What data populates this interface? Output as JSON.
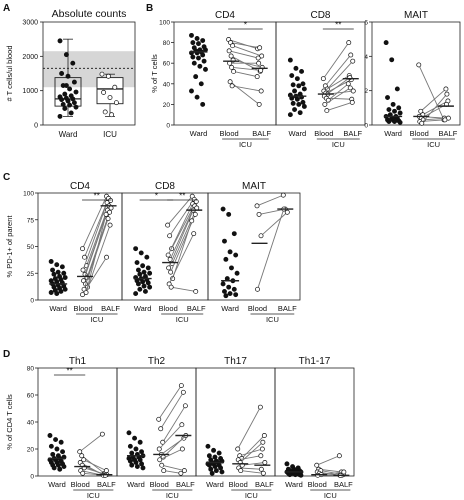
{
  "panel_letters": [
    "A",
    "B",
    "C",
    "D"
  ],
  "chart_data": [
    {
      "panel": "A",
      "type": "box-scatter",
      "title": "Absolute counts",
      "ylabel": "# T cells/ul blood",
      "ylim": [
        0,
        3000
      ],
      "yticks": [
        0,
        1000,
        2000,
        3000
      ],
      "reference_band": [
        1100,
        2150
      ],
      "reference_line": 1650,
      "categories": [
        "Ward",
        "ICU"
      ],
      "groups": [
        {
          "name": "Ward",
          "fill": "#555555",
          "box": {
            "min": 250,
            "q1": 550,
            "median": 760,
            "q3": 1380,
            "max": 2500
          },
          "values": [
            2450,
            2050,
            1800,
            1500,
            1420,
            1250,
            1150,
            1050,
            960,
            900,
            850,
            820,
            780,
            760,
            740,
            700,
            650,
            600,
            580,
            520,
            480,
            350,
            250,
            1150
          ]
        },
        {
          "name": "ICU",
          "fill": "#ffffff",
          "box": {
            "min": 250,
            "q1": 620,
            "median": 1050,
            "q3": 1380,
            "max": 1480
          },
          "values": [
            1480,
            1420,
            1100,
            950,
            800,
            650,
            380,
            300
          ]
        }
      ]
    },
    {
      "panel": "B",
      "type": "paired-dot",
      "ylabel": "% of T cells",
      "group_label": "ICU",
      "x_labels": [
        "Ward",
        "Blood",
        "BALF"
      ],
      "subpanels": [
        {
          "title": "CD4",
          "ylim": [
            0,
            100
          ],
          "yticks": [
            0,
            20,
            40,
            60,
            80,
            100
          ],
          "ward": [
            87,
            84,
            82,
            80,
            79,
            76,
            75,
            73,
            73,
            72,
            71,
            70,
            70,
            68,
            66,
            65,
            62,
            60,
            57,
            54,
            47,
            40,
            33,
            27,
            20
          ],
          "ward_median": 71,
          "pairs": [
            [
              83,
              74
            ],
            [
              80,
              75
            ],
            [
              77,
              67
            ],
            [
              72,
              65
            ],
            [
              67,
              52
            ],
            [
              63,
              56
            ],
            [
              60,
              60
            ],
            [
              56,
              53
            ],
            [
              52,
              47
            ],
            [
              42,
              20
            ],
            [
              38,
              33
            ]
          ],
          "blood_median": 62,
          "balf_median": 55,
          "sig": [
            {
              "from": "Blood",
              "to": "BALF",
              "label": "*"
            }
          ]
        },
        {
          "title": "CD8",
          "ylim": [
            0,
            100
          ],
          "yticks": [
            0,
            20,
            40,
            60,
            80,
            100
          ],
          "ward": [
            63,
            55,
            52,
            48,
            45,
            40,
            39,
            38,
            35,
            33,
            30,
            29,
            28,
            27,
            26,
            25,
            22,
            21,
            20,
            18,
            15,
            12,
            10
          ],
          "ward_median": 28,
          "pairs": [
            [
              45,
              80
            ],
            [
              38,
              68
            ],
            [
              35,
              62
            ],
            [
              33,
              48
            ],
            [
              31,
              44
            ],
            [
              30,
              33
            ],
            [
              28,
              46
            ],
            [
              26,
              25
            ],
            [
              24,
              40
            ],
            [
              20,
              36
            ],
            [
              14,
              22
            ]
          ],
          "blood_median": 30,
          "balf_median": 45,
          "sig": [
            {
              "from": "Blood",
              "to": "BALF",
              "label": "**"
            }
          ]
        },
        {
          "title": "MAIT",
          "ylim": [
            0,
            6
          ],
          "yticks": [
            0,
            2,
            4,
            6
          ],
          "ward": [
            4.8,
            3.8,
            2.1,
            1.6,
            1.2,
            1.0,
            0.9,
            0.8,
            0.7,
            0.6,
            0.5,
            0.5,
            0.4,
            0.4,
            0.3,
            0.3,
            0.25,
            0.2,
            0.2,
            0.15
          ],
          "ward_median": 0.5,
          "pairs": [
            [
              3.5,
              0.3
            ],
            [
              0.8,
              2.1
            ],
            [
              0.6,
              1.4
            ],
            [
              0.5,
              0.4
            ],
            [
              0.4,
              1.2
            ],
            [
              0.3,
              0.4
            ],
            [
              0.2,
              0.3
            ],
            [
              0.1,
              1.8
            ]
          ],
          "blood_median": 0.5,
          "balf_median": 1.1,
          "sig": []
        }
      ]
    },
    {
      "panel": "C",
      "type": "paired-dot",
      "ylabel": "% PD-1+ of parent",
      "group_label": "ICU",
      "x_labels": [
        "Ward",
        "Blood",
        "BALF"
      ],
      "subpanels": [
        {
          "title": "CD4",
          "ylim": [
            0,
            100
          ],
          "yticks": [
            0,
            25,
            50,
            75,
            100
          ],
          "ward": [
            36,
            33,
            31,
            28,
            26,
            25,
            24,
            22,
            21,
            20,
            19,
            18,
            17,
            16,
            15,
            14,
            13,
            12,
            11,
            10,
            9,
            8,
            7,
            6
          ],
          "ward_median": 15,
          "pairs": [
            [
              48,
              97
            ],
            [
              40,
              95
            ],
            [
              32,
              93
            ],
            [
              28,
              91
            ],
            [
              24,
              88
            ],
            [
              21,
              86
            ],
            [
              18,
              84
            ],
            [
              15,
              82
            ],
            [
              12,
              80
            ],
            [
              10,
              76
            ],
            [
              7,
              70
            ],
            [
              5,
              40
            ]
          ],
          "blood_median": 22,
          "balf_median": 88,
          "sig": [
            {
              "from": "Blood",
              "to": "BALF",
              "label": "**"
            }
          ]
        },
        {
          "title": "CD8",
          "ylim": [
            0,
            100
          ],
          "yticks": [
            0,
            25,
            50,
            75,
            100
          ],
          "ward": [
            48,
            44,
            40,
            35,
            32,
            30,
            28,
            26,
            25,
            24,
            22,
            21,
            20,
            19,
            18,
            17,
            16,
            15,
            13,
            12,
            10,
            8,
            6
          ],
          "ward_median": 20,
          "pairs": [
            [
              70,
              97
            ],
            [
              60,
              94
            ],
            [
              48,
              92
            ],
            [
              42,
              90
            ],
            [
              38,
              88
            ],
            [
              34,
              86
            ],
            [
              30,
              84
            ],
            [
              26,
              80
            ],
            [
              20,
              74
            ],
            [
              15,
              62
            ],
            [
              12,
              8
            ]
          ],
          "blood_median": 35,
          "balf_median": 84,
          "sig": [
            {
              "from": "Ward",
              "to": "Blood",
              "label": "*"
            },
            {
              "from": "Blood",
              "to": "BALF",
              "label": "**"
            }
          ]
        },
        {
          "title": "MAIT",
          "ylim": [
            0,
            100
          ],
          "yticks": [
            0,
            25,
            50,
            75,
            100
          ],
          "ward": [
            85,
            80,
            62,
            55,
            45,
            42,
            38,
            30,
            25,
            20,
            18,
            15,
            12,
            10,
            8,
            6,
            5,
            4
          ],
          "ward_median": 18,
          "pairs": [
            [
              88,
              98
            ],
            [
              80,
              85
            ],
            [
              60,
              82
            ],
            [
              10,
              85
            ]
          ],
          "blood_median": 53,
          "balf_median": 85,
          "sig": []
        }
      ]
    },
    {
      "panel": "D",
      "type": "paired-dot",
      "ylabel": "% of CD4 T cells",
      "group_label": "ICU",
      "x_labels": [
        "Ward",
        "Blood",
        "BALF"
      ],
      "subpanels": [
        {
          "title": "Th1",
          "ylim": [
            0,
            80
          ],
          "yticks": [
            0,
            20,
            40,
            60,
            80
          ],
          "ward": [
            30,
            27,
            25,
            22,
            20,
            18,
            16,
            15,
            14,
            13,
            13,
            12,
            12,
            11,
            10,
            10,
            9,
            8,
            8,
            7,
            6,
            5
          ],
          "ward_median": 13,
          "pairs": [
            [
              18,
              31
            ],
            [
              15,
              2
            ],
            [
              12,
              4
            ],
            [
              10,
              1
            ],
            [
              8,
              0.5
            ],
            [
              6,
              1
            ],
            [
              4,
              0.5
            ],
            [
              2,
              0.5
            ]
          ],
          "blood_median": 7,
          "balf_median": 1,
          "sig": [
            {
              "from": "Ward",
              "to": "Blood",
              "label": "**"
            }
          ]
        },
        {
          "title": "Th2",
          "ylim": [
            0,
            80
          ],
          "yticks": [
            0,
            20,
            40,
            60,
            80
          ],
          "ward": [
            32,
            28,
            25,
            22,
            20,
            18,
            17,
            16,
            15,
            14,
            14,
            13,
            12,
            12,
            11,
            10,
            9,
            8,
            7,
            6
          ],
          "ward_median": 15,
          "pairs": [
            [
              42,
              67
            ],
            [
              35,
              62
            ],
            [
              25,
              52
            ],
            [
              20,
              38
            ],
            [
              16,
              28
            ],
            [
              14,
              30
            ],
            [
              12,
              20
            ],
            [
              8,
              4
            ],
            [
              4,
              2
            ]
          ],
          "blood_median": 16,
          "balf_median": 30,
          "sig": []
        },
        {
          "title": "Th17",
          "ylim": [
            0,
            80
          ],
          "yticks": [
            0,
            20,
            40,
            60,
            80
          ],
          "ward": [
            22,
            19,
            17,
            15,
            14,
            13,
            12,
            11,
            11,
            10,
            10,
            9,
            9,
            8,
            8,
            7,
            6,
            5,
            4,
            3,
            2
          ],
          "ward_median": 10,
          "pairs": [
            [
              20,
              51
            ],
            [
              15,
              20
            ],
            [
              13,
              30
            ],
            [
              12,
              15
            ],
            [
              10,
              25
            ],
            [
              8,
              10
            ],
            [
              6,
              5
            ],
            [
              4,
              2
            ]
          ],
          "blood_median": 9,
          "balf_median": 8,
          "sig": []
        },
        {
          "title": "Th1-17",
          "ylim": [
            0,
            80
          ],
          "yticks": [
            0,
            20,
            40,
            60,
            80
          ],
          "ward": [
            9,
            7,
            6,
            5,
            5,
            4,
            4,
            4,
            3,
            3,
            3,
            3,
            2,
            2,
            2,
            2,
            1,
            1,
            1,
            0.5
          ],
          "ward_median": 3,
          "pairs": [
            [
              8,
              15
            ],
            [
              5,
              3
            ],
            [
              4,
              1
            ],
            [
              3,
              0.5
            ],
            [
              2,
              0.5
            ],
            [
              1,
              3
            ],
            [
              0.5,
              0.5
            ]
          ],
          "blood_median": 1,
          "balf_median": 0.5,
          "sig": []
        }
      ]
    }
  ]
}
